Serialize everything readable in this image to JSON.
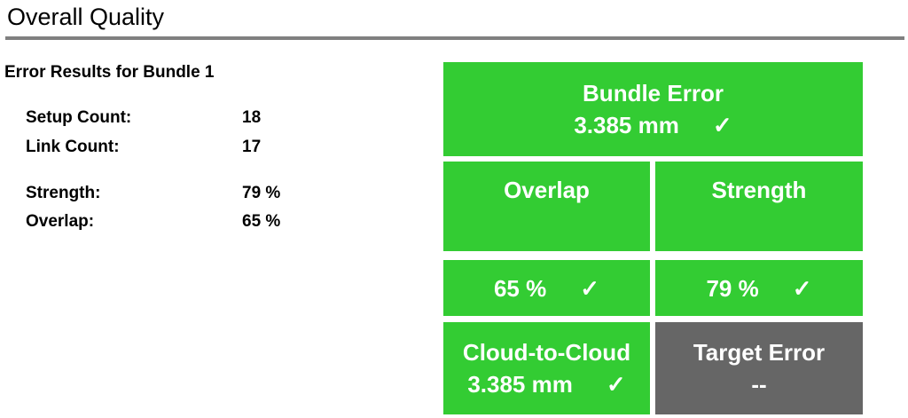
{
  "header": {
    "title": "Overall Quality"
  },
  "summary": {
    "title": "Error Results for Bundle 1",
    "rows": [
      {
        "label": "Setup Count:",
        "value": "18"
      },
      {
        "label": "Link Count:",
        "value": "17"
      },
      {
        "label": "Strength:",
        "value": "79 %"
      },
      {
        "label": "Overlap:",
        "value": "65 %"
      }
    ]
  },
  "tiles": {
    "bundle_error": {
      "label": "Bundle Error",
      "value": "3.385 mm",
      "check": "✓",
      "status": "pass"
    },
    "overlap": {
      "label": "Overlap",
      "value": "65 %",
      "check": "✓",
      "status": "pass"
    },
    "strength": {
      "label": "Strength",
      "value": "79 %",
      "check": "✓",
      "status": "pass"
    },
    "cloud_to_cloud": {
      "label": "Cloud-to-Cloud",
      "value": "3.385 mm",
      "check": "✓",
      "status": "pass"
    },
    "target_error": {
      "label": "Target Error",
      "value": "--",
      "status": "none"
    }
  },
  "colors": {
    "pass": "#33cc33",
    "none": "#666666",
    "rule": "#808080"
  }
}
